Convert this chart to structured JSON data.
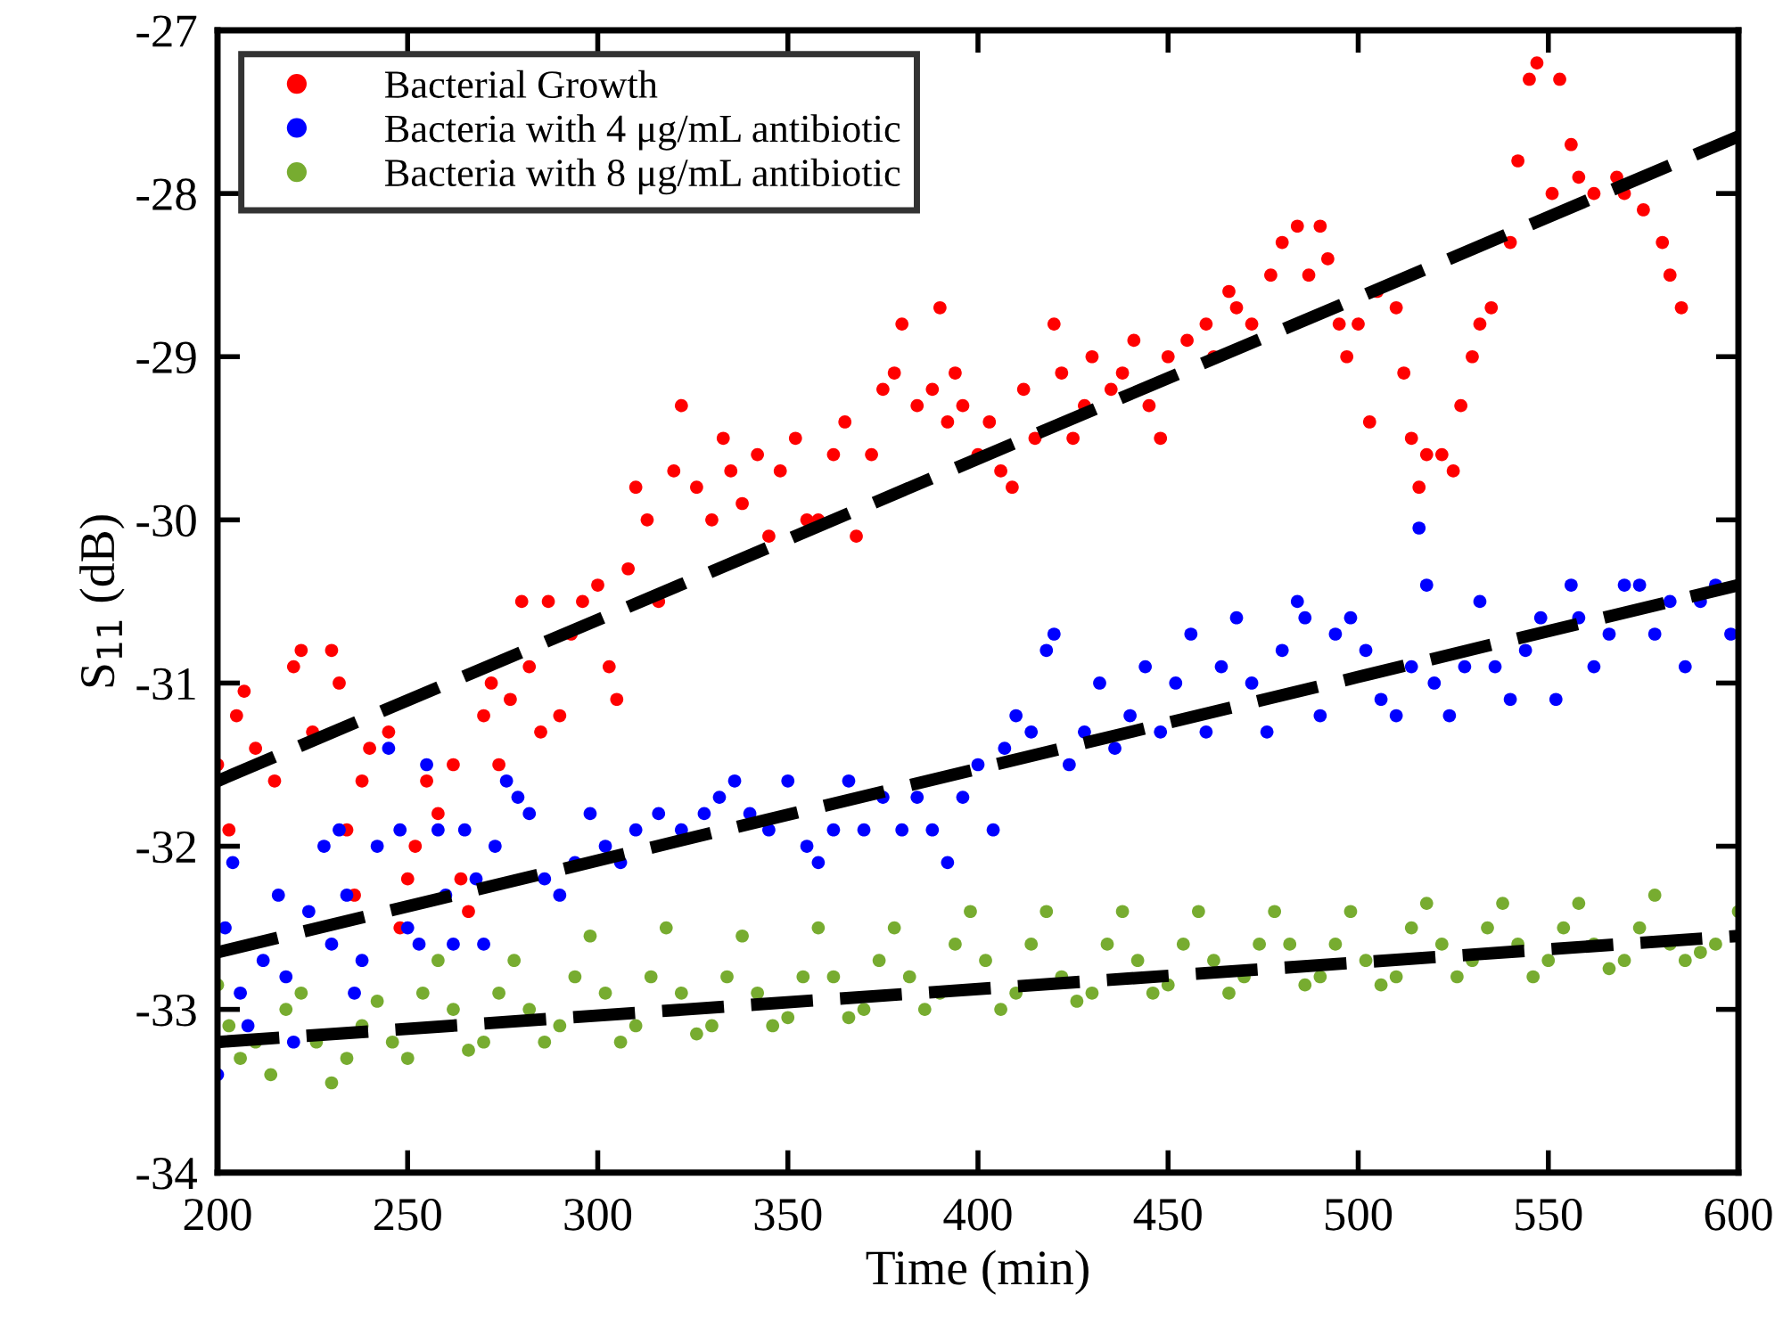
{
  "chart_data": {
    "type": "scatter",
    "xlabel": "Time (min)",
    "ylabel": "S$_{11}$ (dB)",
    "xlim": [
      200,
      600
    ],
    "xticks": [
      200,
      250,
      300,
      350,
      400,
      450,
      500,
      550,
      600
    ],
    "ylim": [
      -34,
      -27
    ],
    "yticks": [
      -34,
      -33,
      -32,
      -31,
      -30,
      -29,
      -28,
      -27
    ],
    "grid": false,
    "legend": "top left",
    "marker": "circle",
    "series": [
      {
        "name": "Bacterial Growth",
        "color": "#ff0000",
        "x": [
          200,
          203,
          205,
          207,
          210,
          215,
          220,
          222,
          225,
          230,
          232,
          234,
          236,
          238,
          240,
          245,
          248,
          250,
          252,
          255,
          258,
          262,
          264,
          266,
          270,
          272,
          274,
          277,
          280,
          282,
          285,
          287,
          290,
          293,
          296,
          300,
          303,
          305,
          308,
          310,
          313,
          316,
          320,
          322,
          326,
          330,
          333,
          335,
          338,
          342,
          345,
          348,
          352,
          355,
          358,
          362,
          365,
          368,
          372,
          375,
          378,
          380,
          384,
          388,
          390,
          392,
          394,
          396,
          400,
          403,
          406,
          409,
          412,
          415,
          420,
          422,
          425,
          428,
          430,
          435,
          438,
          441,
          445,
          448,
          450,
          455,
          460,
          462,
          466,
          468,
          472,
          477,
          480,
          484,
          487,
          490,
          492,
          495,
          497,
          500,
          503,
          505,
          510,
          512,
          514,
          516,
          518,
          522,
          525,
          527,
          530,
          532,
          535,
          540,
          542,
          545,
          547,
          551,
          553,
          556,
          558,
          562,
          568,
          570,
          575,
          580,
          582,
          585
        ],
        "values": [
          -31.5,
          -31.9,
          -31.2,
          -31.05,
          -31.4,
          -31.6,
          -30.9,
          -30.8,
          -31.3,
          -30.8,
          -31.0,
          -31.9,
          -32.3,
          -31.6,
          -31.4,
          -31.3,
          -32.5,
          -32.2,
          -32.0,
          -31.6,
          -31.8,
          -31.5,
          -32.2,
          -32.4,
          -31.2,
          -31.0,
          -31.5,
          -31.1,
          -30.5,
          -30.9,
          -31.3,
          -30.5,
          -31.2,
          -30.7,
          -30.5,
          -30.4,
          -30.9,
          -31.1,
          -30.3,
          -29.8,
          -30.0,
          -30.5,
          -29.7,
          -29.3,
          -29.8,
          -30.0,
          -29.5,
          -29.7,
          -29.9,
          -29.6,
          -30.1,
          -29.7,
          -29.5,
          -30.0,
          -30.0,
          -29.6,
          -29.4,
          -30.1,
          -29.6,
          -29.2,
          -29.1,
          -28.8,
          -29.3,
          -29.2,
          -28.7,
          -29.4,
          -29.1,
          -29.3,
          -29.6,
          -29.4,
          -29.7,
          -29.8,
          -29.2,
          -29.5,
          -28.8,
          -29.1,
          -29.5,
          -29.3,
          -29.0,
          -29.2,
          -29.1,
          -28.9,
          -29.3,
          -29.5,
          -29.0,
          -28.9,
          -28.8,
          -29.0,
          -28.6,
          -28.7,
          -28.8,
          -28.5,
          -28.3,
          -28.2,
          -28.5,
          -28.2,
          -28.4,
          -28.8,
          -29.0,
          -28.8,
          -29.4,
          -28.6,
          -28.7,
          -29.1,
          -29.5,
          -29.8,
          -29.6,
          -29.6,
          -29.7,
          -29.3,
          -29.0,
          -28.8,
          -28.7,
          -28.3,
          -27.8,
          -27.3,
          -27.2,
          -28.0,
          -27.3,
          -27.7,
          -27.9,
          -28.0,
          -27.9,
          -28.0,
          -28.1,
          -28.3,
          -28.5,
          -28.7
        ]
      },
      {
        "name": "Bacteria with 4 μg/mL antibiotic",
        "color": "#0000ff",
        "x": [
          200,
          202,
          204,
          206,
          208,
          212,
          216,
          218,
          220,
          224,
          228,
          230,
          232,
          234,
          236,
          238,
          242,
          245,
          248,
          250,
          253,
          255,
          258,
          260,
          262,
          265,
          268,
          270,
          273,
          276,
          279,
          282,
          286,
          290,
          294,
          298,
          302,
          306,
          310,
          316,
          322,
          328,
          332,
          336,
          340,
          345,
          350,
          355,
          358,
          362,
          366,
          370,
          375,
          380,
          384,
          388,
          392,
          396,
          400,
          404,
          407,
          410,
          414,
          418,
          420,
          424,
          428,
          432,
          436,
          440,
          444,
          448,
          452,
          456,
          460,
          464,
          468,
          472,
          476,
          480,
          484,
          486,
          490,
          494,
          498,
          502,
          506,
          510,
          514,
          516,
          518,
          520,
          524,
          528,
          532,
          536,
          540,
          544,
          548,
          552,
          556,
          558,
          562,
          566,
          570,
          574,
          578,
          582,
          586,
          590,
          594,
          598
        ],
        "values": [
          -33.4,
          -32.5,
          -32.1,
          -32.9,
          -33.1,
          -32.7,
          -32.3,
          -32.8,
          -33.2,
          -32.4,
          -32.0,
          -32.6,
          -31.9,
          -32.3,
          -32.9,
          -32.7,
          -32.0,
          -31.4,
          -31.9,
          -32.5,
          -32.6,
          -31.5,
          -31.9,
          -32.3,
          -32.6,
          -31.9,
          -32.2,
          -32.6,
          -32.0,
          -31.6,
          -31.7,
          -31.8,
          -32.2,
          -32.3,
          -32.1,
          -31.8,
          -32.0,
          -32.1,
          -31.9,
          -31.8,
          -31.9,
          -31.8,
          -31.7,
          -31.6,
          -31.8,
          -31.9,
          -31.6,
          -32.0,
          -32.1,
          -31.9,
          -31.6,
          -31.9,
          -31.7,
          -31.9,
          -31.7,
          -31.9,
          -32.1,
          -31.7,
          -31.5,
          -31.9,
          -31.4,
          -31.2,
          -31.3,
          -30.8,
          -30.7,
          -31.5,
          -31.3,
          -31.0,
          -31.4,
          -31.2,
          -30.9,
          -31.3,
          -31.0,
          -30.7,
          -31.3,
          -30.9,
          -30.6,
          -31.0,
          -31.3,
          -30.8,
          -30.5,
          -30.6,
          -31.2,
          -30.7,
          -30.6,
          -30.8,
          -31.1,
          -31.2,
          -30.9,
          -30.05,
          -30.4,
          -31.0,
          -31.2,
          -30.9,
          -30.5,
          -30.9,
          -31.1,
          -30.8,
          -30.6,
          -31.1,
          -30.4,
          -30.6,
          -30.9,
          -30.7,
          -30.4,
          -30.4,
          -30.7,
          -30.5,
          -30.9,
          -30.5,
          -30.4,
          -30.7
        ]
      },
      {
        "name": "Bacteria with 8 μg/mL antibiotic",
        "color": "#77ac30",
        "x": [
          200,
          203,
          206,
          210,
          214,
          218,
          222,
          226,
          230,
          234,
          238,
          242,
          246,
          250,
          254,
          258,
          262,
          266,
          270,
          274,
          278,
          282,
          286,
          290,
          294,
          298,
          302,
          306,
          310,
          314,
          318,
          322,
          326,
          330,
          334,
          338,
          342,
          346,
          350,
          354,
          358,
          362,
          366,
          370,
          374,
          378,
          382,
          386,
          390,
          394,
          398,
          402,
          406,
          410,
          414,
          418,
          422,
          426,
          430,
          434,
          438,
          442,
          446,
          450,
          454,
          458,
          462,
          466,
          470,
          474,
          478,
          482,
          486,
          490,
          494,
          498,
          502,
          506,
          510,
          514,
          518,
          522,
          526,
          530,
          534,
          538,
          542,
          546,
          550,
          554,
          558,
          562,
          566,
          570,
          574,
          578,
          582,
          586,
          590,
          594,
          600
        ],
        "values": [
          -32.85,
          -33.1,
          -33.3,
          -33.2,
          -33.4,
          -33.0,
          -32.9,
          -33.2,
          -33.45,
          -33.3,
          -33.1,
          -32.95,
          -33.2,
          -33.3,
          -32.9,
          -32.7,
          -33.0,
          -33.25,
          -33.2,
          -32.9,
          -32.7,
          -33.0,
          -33.2,
          -33.1,
          -32.8,
          -32.55,
          -32.9,
          -33.2,
          -33.1,
          -32.8,
          -32.5,
          -32.9,
          -33.15,
          -33.1,
          -32.8,
          -32.55,
          -32.9,
          -33.1,
          -33.05,
          -32.8,
          -32.5,
          -32.8,
          -33.05,
          -33.0,
          -32.7,
          -32.5,
          -32.8,
          -33.0,
          -32.9,
          -32.6,
          -32.4,
          -32.7,
          -33.0,
          -32.9,
          -32.6,
          -32.4,
          -32.8,
          -32.95,
          -32.9,
          -32.6,
          -32.4,
          -32.7,
          -32.9,
          -32.85,
          -32.6,
          -32.4,
          -32.7,
          -32.9,
          -32.8,
          -32.6,
          -32.4,
          -32.6,
          -32.85,
          -32.8,
          -32.6,
          -32.4,
          -32.7,
          -32.85,
          -32.8,
          -32.5,
          -32.35,
          -32.6,
          -32.8,
          -32.7,
          -32.5,
          -32.35,
          -32.6,
          -32.8,
          -32.7,
          -32.5,
          -32.35,
          -32.6,
          -32.75,
          -32.7,
          -32.5,
          -32.3,
          -32.6,
          -32.7,
          -32.65,
          -32.6,
          -32.4
        ]
      },
      {
        "type": "line",
        "color": "#000000",
        "line_style": "dashed",
        "marker": "none",
        "x": [
          200,
          600
        ],
        "values": [
          -31.6,
          -27.65
        ]
      },
      {
        "type": "line",
        "color": "#000000",
        "line_style": "dashed",
        "marker": "none",
        "x": [
          200,
          600
        ],
        "values": [
          -32.65,
          -30.4
        ]
      },
      {
        "type": "line",
        "color": "#000000",
        "line_style": "dashed",
        "marker": "none",
        "x": [
          200,
          600
        ],
        "values": [
          -33.2,
          -32.55
        ]
      }
    ]
  }
}
